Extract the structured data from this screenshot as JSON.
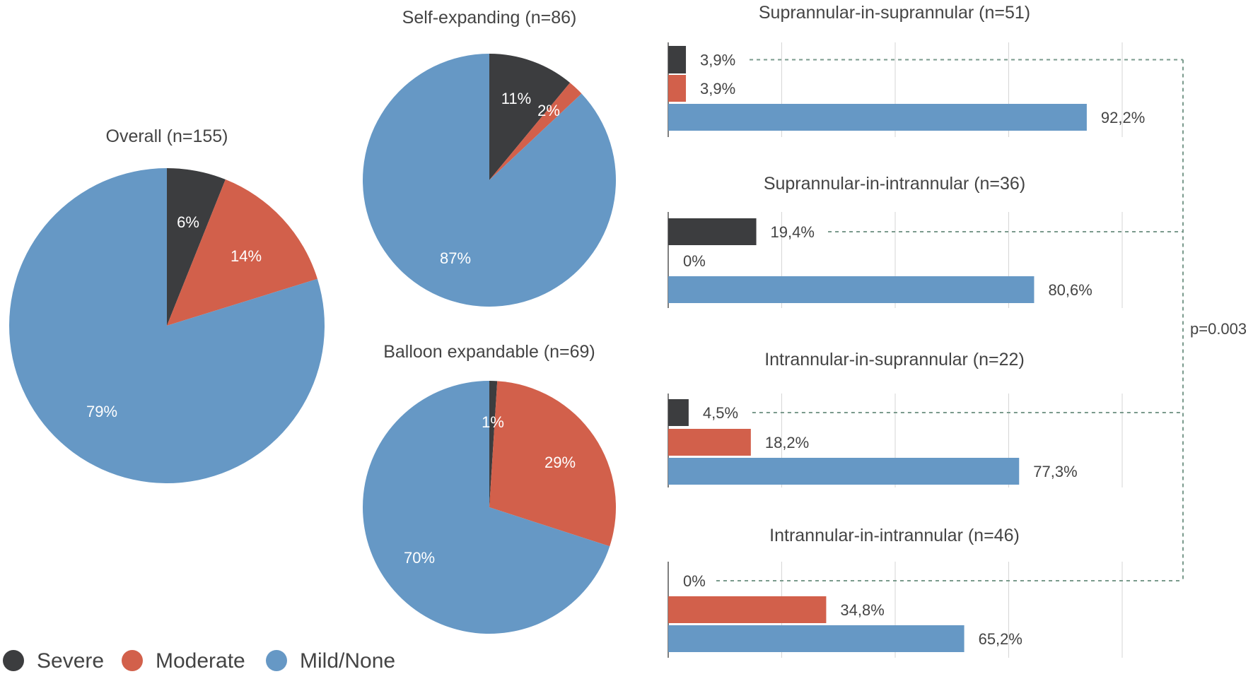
{
  "colors": {
    "severe": "#3c3d3f",
    "moderate": "#d2604b",
    "mild": "#6698c5",
    "grid": "#d6d6d6",
    "axis": "#555555",
    "bracket": "#7a9a8c",
    "text": "#444444"
  },
  "legend": [
    {
      "label": "Severe",
      "key": "severe"
    },
    {
      "label": "Moderate",
      "key": "moderate"
    },
    {
      "label": "Mild/None",
      "key": "mild"
    }
  ],
  "p_value": "p=0.003",
  "chart_data": [
    {
      "type": "pie",
      "title": "Overall (n=155)",
      "slices": [
        {
          "name": "Severe",
          "value": 6,
          "label": "6%"
        },
        {
          "name": "Moderate",
          "value": 14,
          "label": "14%"
        },
        {
          "name": "Mild/None",
          "value": 79,
          "label": "79%"
        }
      ]
    },
    {
      "type": "pie",
      "title": "Self-expanding (n=86)",
      "slices": [
        {
          "name": "Severe",
          "value": 11,
          "label": "11%"
        },
        {
          "name": "Moderate",
          "value": 2,
          "label": "2%"
        },
        {
          "name": "Mild/None",
          "value": 87,
          "label": "87%"
        }
      ]
    },
    {
      "type": "pie",
      "title": "Balloon expandable (n=69)",
      "slices": [
        {
          "name": "Severe",
          "value": 1,
          "label": "1%"
        },
        {
          "name": "Moderate",
          "value": 29,
          "label": "29%"
        },
        {
          "name": "Mild/None",
          "value": 70,
          "label": "70%"
        }
      ]
    },
    {
      "type": "bar",
      "orientation": "horizontal",
      "title": "Suprannular-in-suprannular (n=51)",
      "xlim": [
        0,
        100
      ],
      "bars": [
        {
          "name": "Severe",
          "value": 3.9,
          "label": "3,9%"
        },
        {
          "name": "Moderate",
          "value": 3.9,
          "label": "3,9%"
        },
        {
          "name": "Mild/None",
          "value": 92.2,
          "label": "92,2%"
        }
      ]
    },
    {
      "type": "bar",
      "orientation": "horizontal",
      "title": "Suprannular-in-intrannular (n=36)",
      "xlim": [
        0,
        100
      ],
      "bars": [
        {
          "name": "Severe",
          "value": 19.4,
          "label": "19,4%"
        },
        {
          "name": "Moderate",
          "value": 0,
          "label": "0%"
        },
        {
          "name": "Mild/None",
          "value": 80.6,
          "label": "80,6%"
        }
      ]
    },
    {
      "type": "bar",
      "orientation": "horizontal",
      "title": "Intrannular-in-suprannular (n=22)",
      "xlim": [
        0,
        100
      ],
      "bars": [
        {
          "name": "Severe",
          "value": 4.5,
          "label": "4,5%"
        },
        {
          "name": "Moderate",
          "value": 18.2,
          "label": "18,2%"
        },
        {
          "name": "Mild/None",
          "value": 77.3,
          "label": "77,3%"
        }
      ]
    },
    {
      "type": "bar",
      "orientation": "horizontal",
      "title": "Intrannular-in-intrannular (n=46)",
      "xlim": [
        0,
        100
      ],
      "bars": [
        {
          "name": "Severe",
          "value": 0,
          "label": "0%"
        },
        {
          "name": "Moderate",
          "value": 34.8,
          "label": "34,8%"
        },
        {
          "name": "Mild/None",
          "value": 65.2,
          "label": "65,2%"
        }
      ]
    }
  ]
}
